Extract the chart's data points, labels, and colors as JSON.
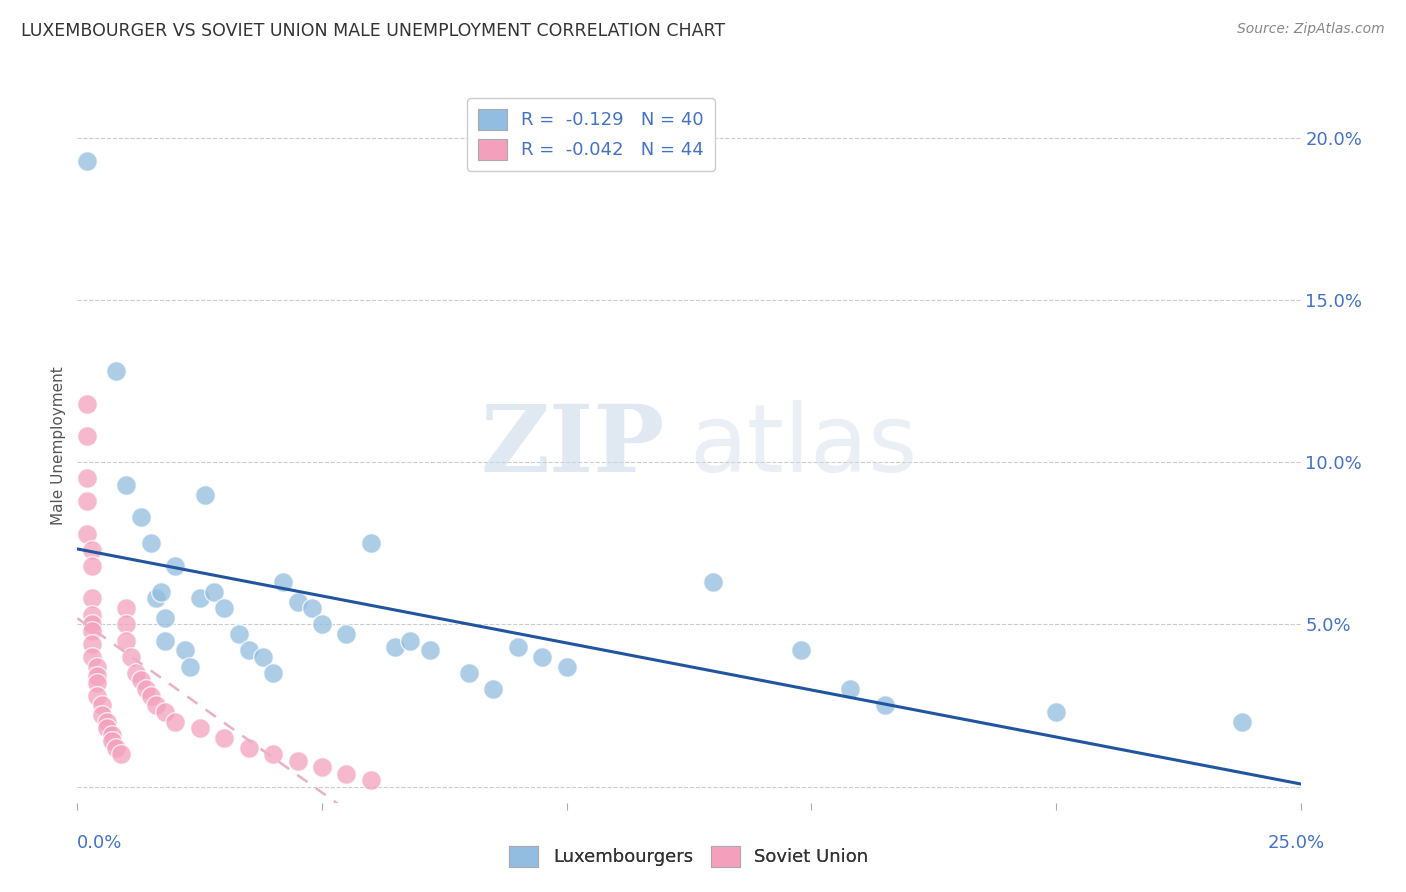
{
  "title": "LUXEMBOURGER VS SOVIET UNION MALE UNEMPLOYMENT CORRELATION CHART",
  "source": "Source: ZipAtlas.com",
  "ylabel": "Male Unemployment",
  "y_ticks": [
    0.0,
    0.05,
    0.1,
    0.15,
    0.2
  ],
  "y_tick_labels": [
    "",
    "5.0%",
    "10.0%",
    "15.0%",
    "20.0%"
  ],
  "x_range": [
    0.0,
    0.25
  ],
  "y_range": [
    -0.005,
    0.215
  ],
  "watermark_zip": "ZIP",
  "watermark_atlas": "atlas",
  "blue_color": "#92bde0",
  "pink_color": "#f4a0bc",
  "blue_line_color": "#2255a0",
  "pink_line_color": "#e8b0c8",
  "legend1_label1": "R =  -0.129   N = 40",
  "legend1_label2": "R =  -0.042   N = 44",
  "legend2_label1": "Luxembourgers",
  "legend2_label2": "Soviet Union",
  "blue_scatter": [
    [
      0.002,
      0.193
    ],
    [
      0.008,
      0.128
    ],
    [
      0.01,
      0.093
    ],
    [
      0.013,
      0.083
    ],
    [
      0.015,
      0.075
    ],
    [
      0.016,
      0.058
    ],
    [
      0.017,
      0.06
    ],
    [
      0.018,
      0.052
    ],
    [
      0.018,
      0.045
    ],
    [
      0.02,
      0.068
    ],
    [
      0.022,
      0.042
    ],
    [
      0.023,
      0.037
    ],
    [
      0.025,
      0.058
    ],
    [
      0.026,
      0.09
    ],
    [
      0.028,
      0.06
    ],
    [
      0.03,
      0.055
    ],
    [
      0.033,
      0.047
    ],
    [
      0.035,
      0.042
    ],
    [
      0.038,
      0.04
    ],
    [
      0.04,
      0.035
    ],
    [
      0.042,
      0.063
    ],
    [
      0.045,
      0.057
    ],
    [
      0.048,
      0.055
    ],
    [
      0.05,
      0.05
    ],
    [
      0.055,
      0.047
    ],
    [
      0.06,
      0.075
    ],
    [
      0.065,
      0.043
    ],
    [
      0.068,
      0.045
    ],
    [
      0.072,
      0.042
    ],
    [
      0.08,
      0.035
    ],
    [
      0.085,
      0.03
    ],
    [
      0.09,
      0.043
    ],
    [
      0.095,
      0.04
    ],
    [
      0.1,
      0.037
    ],
    [
      0.13,
      0.063
    ],
    [
      0.148,
      0.042
    ],
    [
      0.158,
      0.03
    ],
    [
      0.2,
      0.023
    ],
    [
      0.238,
      0.02
    ],
    [
      0.165,
      0.025
    ]
  ],
  "pink_scatter": [
    [
      0.002,
      0.118
    ],
    [
      0.002,
      0.108
    ],
    [
      0.002,
      0.095
    ],
    [
      0.002,
      0.088
    ],
    [
      0.002,
      0.078
    ],
    [
      0.003,
      0.073
    ],
    [
      0.003,
      0.068
    ],
    [
      0.003,
      0.058
    ],
    [
      0.003,
      0.053
    ],
    [
      0.003,
      0.05
    ],
    [
      0.003,
      0.048
    ],
    [
      0.003,
      0.044
    ],
    [
      0.003,
      0.04
    ],
    [
      0.004,
      0.037
    ],
    [
      0.004,
      0.034
    ],
    [
      0.004,
      0.032
    ],
    [
      0.004,
      0.028
    ],
    [
      0.005,
      0.025
    ],
    [
      0.005,
      0.022
    ],
    [
      0.006,
      0.02
    ],
    [
      0.006,
      0.018
    ],
    [
      0.007,
      0.016
    ],
    [
      0.007,
      0.014
    ],
    [
      0.008,
      0.012
    ],
    [
      0.009,
      0.01
    ],
    [
      0.01,
      0.055
    ],
    [
      0.01,
      0.05
    ],
    [
      0.01,
      0.045
    ],
    [
      0.011,
      0.04
    ],
    [
      0.012,
      0.035
    ],
    [
      0.013,
      0.033
    ],
    [
      0.014,
      0.03
    ],
    [
      0.015,
      0.028
    ],
    [
      0.016,
      0.025
    ],
    [
      0.018,
      0.023
    ],
    [
      0.02,
      0.02
    ],
    [
      0.025,
      0.018
    ],
    [
      0.03,
      0.015
    ],
    [
      0.035,
      0.012
    ],
    [
      0.04,
      0.01
    ],
    [
      0.045,
      0.008
    ],
    [
      0.05,
      0.006
    ],
    [
      0.055,
      0.004
    ],
    [
      0.06,
      0.002
    ]
  ]
}
